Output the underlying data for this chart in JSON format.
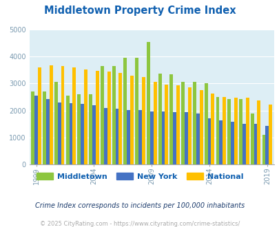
{
  "title": "Middletown Property Crime Index",
  "subtitle": "Crime Index corresponds to incidents per 100,000 inhabitants",
  "footer": "© 2025 CityRating.com - https://www.cityrating.com/crime-statistics/",
  "years": [
    1999,
    2000,
    2001,
    2002,
    2003,
    2004,
    2005,
    2006,
    2007,
    2008,
    2009,
    2010,
    2011,
    2012,
    2013,
    2014,
    2015,
    2016,
    2017,
    2018,
    2019,
    2020
  ],
  "xtick_years": [
    1999,
    2004,
    2009,
    2014,
    2019
  ],
  "middletown": [
    2700,
    2700,
    3050,
    2550,
    2600,
    2600,
    3650,
    3650,
    3950,
    3950,
    4550,
    3380,
    3350,
    3050,
    3050,
    3010,
    2510,
    2420,
    2420,
    1880,
    1100,
    null
  ],
  "newyork": [
    2550,
    2420,
    2300,
    2280,
    2250,
    2200,
    2090,
    2060,
    2020,
    2010,
    1970,
    1970,
    1940,
    1950,
    1880,
    1720,
    1640,
    1590,
    1510,
    1500,
    1430,
    null
  ],
  "national": [
    3600,
    3680,
    3650,
    3600,
    3510,
    3460,
    3450,
    3390,
    3300,
    3250,
    3060,
    2970,
    2940,
    2860,
    2760,
    2620,
    2510,
    2480,
    2470,
    2380,
    2210,
    null
  ],
  "bar_colors": [
    "#8dc63f",
    "#4472c4",
    "#ffc000"
  ],
  "bg_color": "#ddeef5",
  "ylim": [
    0,
    5000
  ],
  "yticks": [
    0,
    1000,
    2000,
    3000,
    4000,
    5000
  ],
  "legend_labels": [
    "Middletown",
    "New York",
    "National"
  ],
  "title_color": "#1060b0",
  "subtitle_color": "#1a3a6b",
  "footer_color": "#aaaaaa",
  "xtick_color": "#7a9ab0",
  "ytick_color": "#7a9ab0"
}
